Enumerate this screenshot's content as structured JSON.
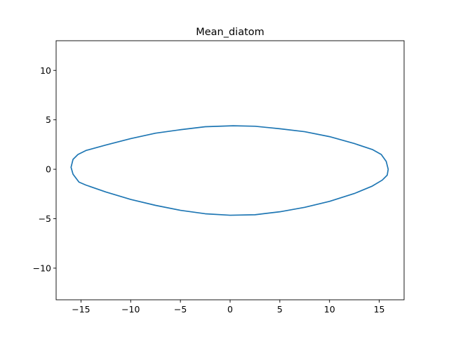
{
  "chart_data": {
    "type": "line",
    "title": "Mean_diatom",
    "xlabel": "",
    "ylabel": "",
    "xlim": [
      -17.5,
      17.5
    ],
    "ylim": [
      -13.2,
      13.0
    ],
    "xticks": [
      -15,
      -10,
      -5,
      0,
      5,
      10,
      15
    ],
    "yticks": [
      -10,
      -5,
      0,
      5,
      10
    ],
    "xtick_labels": [
      "−15",
      "−10",
      "−5",
      "0",
      "5",
      "10",
      "15"
    ],
    "ytick_labels": [
      "−10",
      "−5",
      "0",
      "5",
      "10"
    ],
    "grid": false,
    "series": [
      {
        "color": "#1f77b4",
        "closed": true,
        "x": [
          15.9,
          15.7,
          15.2,
          14.3,
          12.5,
          10.0,
          7.5,
          5.0,
          2.5,
          0.3,
          -2.5,
          -5.0,
          -7.5,
          -10.0,
          -12.5,
          -14.5,
          -15.3,
          -15.8,
          -16.0,
          -15.8,
          -15.2,
          -14.5,
          -12.5,
          -10.0,
          -7.5,
          -5.0,
          -2.5,
          0.0,
          2.5,
          5.0,
          7.5,
          10.0,
          12.5,
          14.3,
          15.3,
          15.8,
          15.9
        ],
        "y": [
          0.0,
          0.8,
          1.5,
          2.0,
          2.6,
          3.3,
          3.8,
          4.1,
          4.35,
          4.4,
          4.3,
          4.0,
          3.65,
          3.1,
          2.45,
          1.9,
          1.5,
          1.0,
          0.2,
          -0.5,
          -1.3,
          -1.6,
          -2.3,
          -3.05,
          -3.65,
          -4.15,
          -4.5,
          -4.65,
          -4.6,
          -4.3,
          -3.85,
          -3.25,
          -2.45,
          -1.7,
          -1.1,
          -0.6,
          0.0
        ]
      }
    ]
  }
}
